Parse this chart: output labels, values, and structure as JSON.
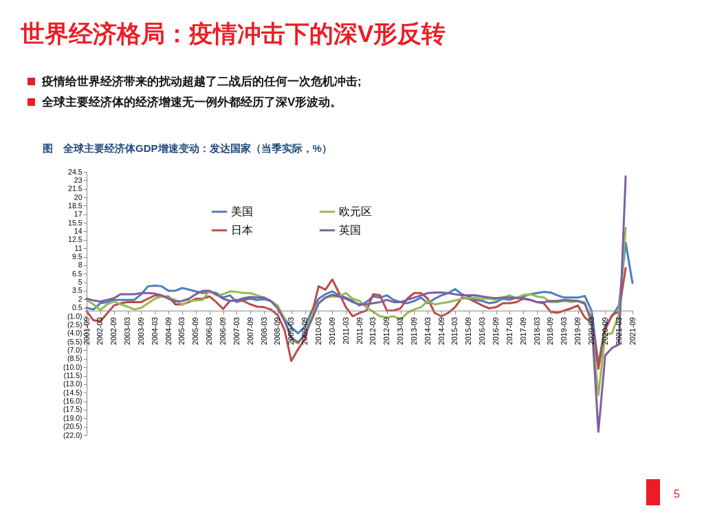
{
  "chart_data": {
    "type": "line",
    "title": "世界经济格局：疫情冲击下的深V形反转",
    "subtitle": "图　全球主要经济体GDP增速变动：发达国家（当季实际，%）",
    "annotations": [
      "疫情给世界经济带来的扰动超越了二战后的任何一次危机冲击;",
      "全球主要经济体的经济增速无一例外都经历了深V形波动。",
      "5"
    ],
    "categories": [
      "2001-09",
      null,
      "2002-03",
      null,
      "2002-09",
      null,
      "2003-03",
      null,
      "2003-09",
      null,
      "2004-03",
      null,
      "2004-09",
      null,
      "2005-03",
      null,
      "2005-09",
      null,
      "2006-03",
      null,
      "2006-09",
      null,
      "2007-03",
      null,
      "2007-09",
      null,
      "2008-03",
      null,
      "2008-09",
      null,
      "2009-03",
      null,
      "2009-09",
      null,
      "2010-03",
      null,
      "2010-09",
      null,
      "2011-03",
      null,
      "2011-09",
      null,
      "2012-03",
      null,
      "2012-09",
      null,
      "2013-03",
      null,
      "2013-09",
      null,
      "2014-03",
      null,
      "2014-09",
      null,
      "2015-03",
      null,
      "2015-09",
      null,
      "2016-03",
      null,
      "2016-09",
      null,
      "2017-03",
      null,
      "2017-09",
      null,
      "2018-03",
      null,
      "2018-09",
      null,
      "2019-03",
      null,
      "2019-09",
      null,
      "2020-03",
      null,
      "2020-09",
      null,
      "2021-03",
      null,
      "2021-09"
    ],
    "series": [
      {
        "name": "美国",
        "color": "#4a7ebb",
        "values": [
          0.5,
          0.2,
          1.3,
          1.5,
          1.9,
          1.9,
          1.9,
          1.9,
          2.9,
          4.3,
          4.4,
          4.3,
          3.5,
          3.5,
          4.0,
          3.7,
          3.4,
          3.1,
          3.3,
          3.1,
          2.3,
          2.7,
          1.5,
          1.9,
          2.1,
          1.9,
          2.0,
          1.7,
          0.6,
          -1.4,
          -3.0,
          -4.0,
          -2.8,
          0.0,
          2.1,
          2.9,
          3.4,
          2.7,
          2.3,
          1.7,
          0.9,
          1.5,
          2.5,
          2.3,
          2.7,
          1.9,
          1.5,
          1.3,
          1.7,
          2.3,
          1.3,
          2.1,
          2.7,
          3.1,
          3.8,
          2.9,
          2.5,
          1.9,
          1.7,
          1.3,
          1.5,
          2.1,
          1.9,
          2.3,
          2.5,
          2.9,
          3.1,
          3.3,
          3.2,
          2.7,
          2.3,
          2.3,
          2.3,
          2.6,
          0.0,
          -9.5,
          -2.6,
          -1.0,
          0.9,
          12.0,
          4.9
        ]
      },
      {
        "name": "日本",
        "color": "#be4b48",
        "values": [
          -0.1,
          -1.7,
          -1.9,
          -0.5,
          0.9,
          1.3,
          1.5,
          1.5,
          1.5,
          2.1,
          2.7,
          2.5,
          2.5,
          1.1,
          1.1,
          1.5,
          2.1,
          2.1,
          2.5,
          1.5,
          0.3,
          1.7,
          1.9,
          1.7,
          1.1,
          0.7,
          0.6,
          0.2,
          -0.8,
          -3.4,
          -8.9,
          -6.8,
          -5.0,
          -0.6,
          4.3,
          3.7,
          5.5,
          3.1,
          0.6,
          -1.0,
          -0.4,
          0.0,
          2.9,
          2.7,
          0.0,
          0.0,
          0.4,
          2.1,
          3.1,
          3.1,
          2.1,
          -0.4,
          -1.0,
          -0.4,
          0.6,
          2.3,
          2.1,
          1.5,
          0.9,
          0.4,
          0.6,
          1.3,
          1.3,
          1.5,
          2.1,
          1.9,
          1.5,
          1.3,
          -0.2,
          -0.4,
          0.0,
          0.4,
          0.9,
          -1.2,
          -2.2,
          -10.3,
          -3.4,
          -0.8,
          -0.2,
          7.5,
          null
        ]
      },
      {
        "name": "欧元区",
        "color": "#98b954",
        "values": [
          1.9,
          1.1,
          0.1,
          1.1,
          1.6,
          1.1,
          0.7,
          0.2,
          0.5,
          1.3,
          2.1,
          2.5,
          2.3,
          1.9,
          1.0,
          1.7,
          1.8,
          1.9,
          3.5,
          2.7,
          2.9,
          3.4,
          3.3,
          3.1,
          3.1,
          2.7,
          2.3,
          1.7,
          0.9,
          -1.4,
          -5.2,
          -5.8,
          -4.0,
          -0.8,
          1.3,
          2.3,
          2.5,
          2.5,
          3.1,
          2.1,
          1.7,
          0.6,
          -0.2,
          -1.0,
          -1.2,
          -1.0,
          -1.6,
          -0.4,
          0.2,
          0.6,
          1.7,
          1.1,
          1.3,
          1.5,
          1.8,
          2.1,
          2.2,
          2.3,
          2.1,
          2.1,
          1.9,
          2.3,
          2.7,
          2.2,
          2.8,
          2.9,
          2.5,
          2.3,
          1.5,
          1.5,
          1.7,
          1.5,
          1.7,
          1.5,
          -2.5,
          -14.9,
          -4.2,
          -4.0,
          -0.6,
          14.6,
          null
        ]
      },
      {
        "name": "英国",
        "color": "#7d5fa0",
        "values": [
          2.1,
          1.8,
          1.6,
          1.9,
          2.2,
          2.9,
          2.9,
          2.9,
          3.1,
          3.1,
          3.0,
          2.7,
          2.1,
          1.6,
          1.7,
          2.1,
          2.9,
          3.5,
          3.5,
          2.9,
          2.1,
          1.7,
          1.8,
          2.2,
          2.4,
          2.3,
          2.3,
          1.7,
          0.4,
          -1.8,
          -4.8,
          -5.6,
          -4.2,
          -1.6,
          1.3,
          2.3,
          2.8,
          2.5,
          2.1,
          1.5,
          1.1,
          1.1,
          1.3,
          1.5,
          1.9,
          1.5,
          1.5,
          1.9,
          2.3,
          2.7,
          3.1,
          3.2,
          3.2,
          3.1,
          2.9,
          2.7,
          2.7,
          2.7,
          2.5,
          2.3,
          2.2,
          2.3,
          2.3,
          2.2,
          2.2,
          1.9,
          1.5,
          1.5,
          1.7,
          1.7,
          1.9,
          1.8,
          1.7,
          1.2,
          -1.5,
          -21.4,
          -7.9,
          -6.6,
          -6.0,
          23.7,
          null
        ]
      }
    ],
    "ylim": [
      -22.0,
      24.5
    ],
    "yticks": [
      24.5,
      23.0,
      21.5,
      20.0,
      18.5,
      17.0,
      15.5,
      14.0,
      12.5,
      11.0,
      9.5,
      8.0,
      6.5,
      5.0,
      3.5,
      2.0,
      0.5,
      {
        "value": -1.0,
        "label": "(1.0)"
      },
      {
        "value": -2.5,
        "label": "(2.5)"
      },
      {
        "value": -4.0,
        "label": "(4.0)"
      },
      {
        "value": -5.5,
        "label": "(5.5)"
      },
      {
        "value": -7.0,
        "label": "(7.0)"
      },
      {
        "value": -8.5,
        "label": "(8.5)"
      },
      {
        "value": -10.0,
        "label": "(10.0)"
      },
      {
        "value": -11.5,
        "label": "(11.5)"
      },
      {
        "value": -13.0,
        "label": "(13.0)"
      },
      {
        "value": -14.5,
        "label": "(14.5)"
      },
      {
        "value": -16.0,
        "label": "(16.0)"
      },
      {
        "value": -17.5,
        "label": "(17.5)"
      },
      {
        "value": -19.0,
        "label": "(19.0)"
      },
      {
        "value": -20.5,
        "label": "(20.5)"
      },
      {
        "value": -22.0,
        "label": "(22.0)"
      }
    ],
    "grid": false,
    "legend": "top"
  }
}
